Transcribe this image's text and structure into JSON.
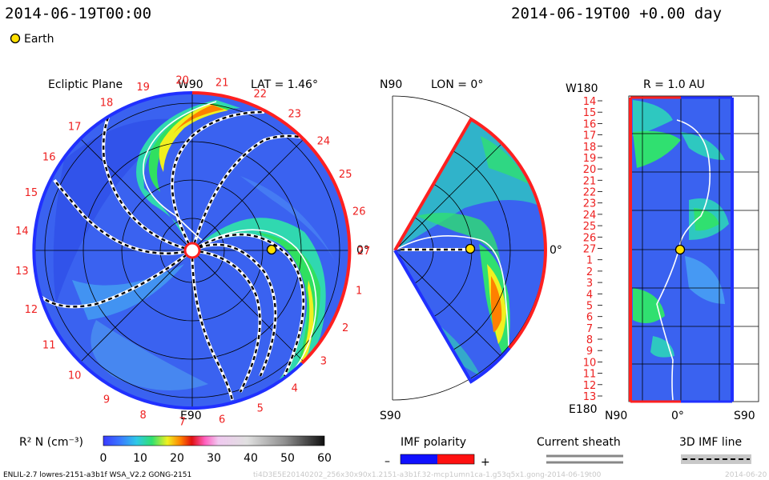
{
  "header": {
    "left_time": "2014-06-19T00:00",
    "right_time": "2014-06-19T00 +0.00 day",
    "legend_earth": "Earth"
  },
  "colors": {
    "outer_red": "#ff2020",
    "outer_blue": "#2030ff",
    "earth": "#ffe000",
    "background_density": "#3a62f0"
  },
  "panels": {
    "ecliptic": {
      "title": "Ecliptic Plane",
      "lat_label": "LAT = 1.46°",
      "top_label": "W90",
      "bottom_label": "E90",
      "right_label": "0°",
      "carrington_labels": [
        "1",
        "2",
        "3",
        "4",
        "5",
        "6",
        "7",
        "8",
        "9",
        "10",
        "11",
        "12",
        "13",
        "14",
        "15",
        "16",
        "17",
        "18",
        "19",
        "20",
        "21",
        "22",
        "23",
        "24",
        "25",
        "26",
        "27"
      ]
    },
    "meridional": {
      "top_label": "N90",
      "lon_label": "LON = 0°",
      "bottom_label": "S90",
      "right_label": "0°"
    },
    "radial": {
      "title": "R = 1.0 AU",
      "top_left_label": "W180",
      "bottom_left_label": "E180",
      "x_labels": [
        "N90",
        "0°",
        "S90"
      ],
      "row_labels": [
        "14",
        "15",
        "16",
        "17",
        "18",
        "19",
        "20",
        "21",
        "22",
        "23",
        "24",
        "25",
        "26",
        "27",
        "1",
        "2",
        "3",
        "4",
        "5",
        "6",
        "7",
        "8",
        "9",
        "10",
        "11",
        "12",
        "13"
      ]
    }
  },
  "colorbar": {
    "label": "R² N (cm⁻³)",
    "ticks": [
      "0",
      "10",
      "20",
      "30",
      "40",
      "50",
      "60"
    ],
    "min": 0,
    "max": 60
  },
  "legend": {
    "imf_polarity": "IMF polarity",
    "minus": "–",
    "plus": "+",
    "current_sheath": "Current sheath",
    "imf_line": "3D IMF line"
  },
  "footer": {
    "left": "ENLIL-2.7 lowres-2151-a3b1f WSA_V2.2 GONG-2151",
    "right": "ti4D3E5E20140202_256x30x90x1.2151-a3b1f.32-mcp1umn1ca-1.g53q5x1.gong-2014-06-19t00",
    "date_right": "2014-06-20"
  }
}
